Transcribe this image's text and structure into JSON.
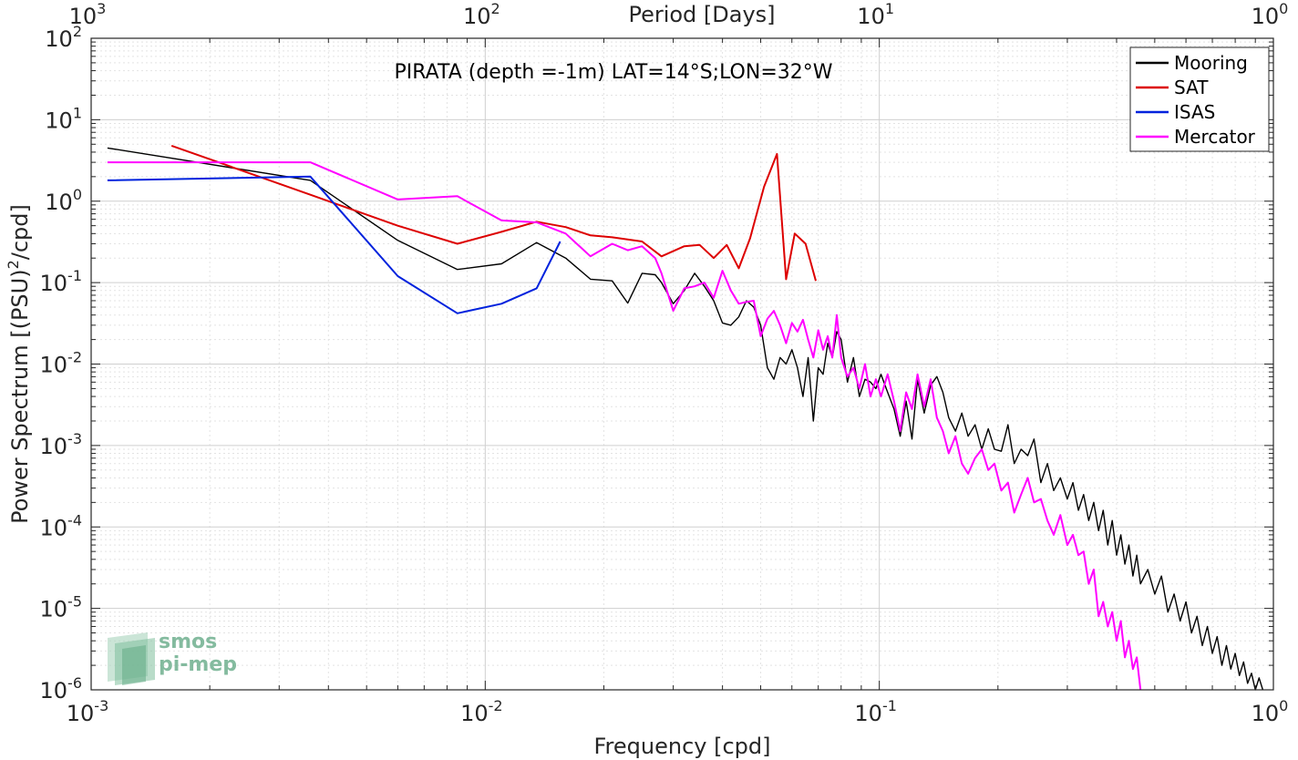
{
  "chart_data": {
    "type": "line",
    "title": "PIRATA (depth =-1m) LAT=14°S;LON=32°W",
    "xlabel": "Frequency [cpd]",
    "ylabel": "Power Spectrum [(PSU)^2/cpd]",
    "ylabel_parts": {
      "pre": "Power Spectrum [(PSU)",
      "sup": "2",
      "post": "/cpd]"
    },
    "top_xlabel": "Period [Days]",
    "xscale": "log",
    "yscale": "log",
    "xlim": [
      0.001,
      1
    ],
    "ylim": [
      1e-06,
      100
    ],
    "grid": true,
    "legend_position": "top-right",
    "x_ticks": [
      {
        "value": 0.001,
        "base": "10",
        "exp": "-3"
      },
      {
        "value": 0.01,
        "base": "10",
        "exp": "-2"
      },
      {
        "value": 0.1,
        "base": "10",
        "exp": "-1"
      },
      {
        "value": 1,
        "base": "10",
        "exp": "0"
      }
    ],
    "y_ticks": [
      {
        "value": 1e-06,
        "base": "10",
        "exp": "-6"
      },
      {
        "value": 1e-05,
        "base": "10",
        "exp": "-5"
      },
      {
        "value": 0.0001,
        "base": "10",
        "exp": "-4"
      },
      {
        "value": 0.001,
        "base": "10",
        "exp": "-3"
      },
      {
        "value": 0.01,
        "base": "10",
        "exp": "-2"
      },
      {
        "value": 0.1,
        "base": "10",
        "exp": "-1"
      },
      {
        "value": 1,
        "base": "10",
        "exp": "0"
      },
      {
        "value": 10,
        "base": "10",
        "exp": "1"
      },
      {
        "value": 100,
        "base": "10",
        "exp": "2"
      }
    ],
    "top_ticks": [
      {
        "period": 1000,
        "base": "10",
        "exp": "3"
      },
      {
        "period": 100,
        "base": "10",
        "exp": "2"
      },
      {
        "period": 10,
        "base": "10",
        "exp": "1"
      },
      {
        "period": 1,
        "base": "10",
        "exp": "0"
      }
    ],
    "series": [
      {
        "name": "Mooring",
        "color": "#000000",
        "x": [
          0.0011,
          0.0036,
          0.006,
          0.0085,
          0.011,
          0.0135,
          0.016,
          0.0185,
          0.021,
          0.023,
          0.025,
          0.027,
          0.028,
          0.03,
          0.032,
          0.034,
          0.036,
          0.038,
          0.04,
          0.042,
          0.044,
          0.046,
          0.048,
          0.05,
          0.052,
          0.054,
          0.056,
          0.058,
          0.06,
          0.062,
          0.064,
          0.066,
          0.068,
          0.07,
          0.072,
          0.074,
          0.076,
          0.078,
          0.08,
          0.083,
          0.086,
          0.089,
          0.092,
          0.095,
          0.098,
          0.101,
          0.105,
          0.109,
          0.113,
          0.117,
          0.121,
          0.125,
          0.13,
          0.135,
          0.14,
          0.145,
          0.15,
          0.156,
          0.162,
          0.168,
          0.175,
          0.182,
          0.189,
          0.196,
          0.204,
          0.212,
          0.22,
          0.229,
          0.238,
          0.247,
          0.257,
          0.267,
          0.277,
          0.288,
          0.3,
          0.31,
          0.32,
          0.33,
          0.34,
          0.35,
          0.36,
          0.37,
          0.38,
          0.39,
          0.4,
          0.41,
          0.42,
          0.43,
          0.44,
          0.45,
          0.46,
          0.48,
          0.5,
          0.52,
          0.54,
          0.56,
          0.58,
          0.6,
          0.62,
          0.64,
          0.66,
          0.68,
          0.7,
          0.72,
          0.74,
          0.76,
          0.78,
          0.8,
          0.82,
          0.84,
          0.86,
          0.88,
          0.9,
          0.92,
          0.94
        ],
        "y": [
          4.5,
          1.8,
          0.33,
          0.145,
          0.17,
          0.31,
          0.2,
          0.11,
          0.105,
          0.056,
          0.13,
          0.125,
          0.1,
          0.055,
          0.08,
          0.13,
          0.09,
          0.06,
          0.032,
          0.03,
          0.038,
          0.06,
          0.05,
          0.03,
          0.009,
          0.0065,
          0.012,
          0.01,
          0.015,
          0.009,
          0.004,
          0.012,
          0.002,
          0.009,
          0.0075,
          0.018,
          0.012,
          0.025,
          0.02,
          0.006,
          0.012,
          0.004,
          0.0065,
          0.006,
          0.005,
          0.0075,
          0.0045,
          0.0028,
          0.0013,
          0.0035,
          0.0012,
          0.0065,
          0.0025,
          0.0055,
          0.007,
          0.0045,
          0.0022,
          0.0015,
          0.0025,
          0.0013,
          0.0018,
          0.0009,
          0.0016,
          0.0009,
          0.00085,
          0.0018,
          0.0006,
          0.0009,
          0.00075,
          0.0012,
          0.00035,
          0.0006,
          0.00028,
          0.0004,
          0.00022,
          0.00035,
          0.00016,
          0.00025,
          0.00012,
          0.0002,
          9e-05,
          0.00016,
          6e-05,
          0.00012,
          4.5e-05,
          8e-05,
          3.5e-05,
          6e-05,
          2.5e-05,
          4.5e-05,
          2e-05,
          3e-05,
          1.5e-05,
          2.5e-05,
          9e-06,
          1.5e-05,
          7e-06,
          1.2e-05,
          5e-06,
          8e-06,
          3.5e-06,
          6e-06,
          2.8e-06,
          4.5e-06,
          2e-06,
          3.5e-06,
          1.8e-06,
          2.8e-06,
          1.5e-06,
          2.2e-06,
          1.2e-06,
          1.6e-06,
          1e-06,
          1.4e-06,
          1e-06
        ]
      },
      {
        "name": "SAT",
        "color": "#dd0000",
        "x": [
          0.0016,
          0.0036,
          0.006,
          0.0085,
          0.011,
          0.0135,
          0.016,
          0.0185,
          0.021,
          0.025,
          0.028,
          0.032,
          0.035,
          0.038,
          0.041,
          0.044,
          0.047,
          0.051,
          0.055,
          0.058,
          0.061,
          0.065,
          0.069
        ],
        "y": [
          4.8,
          1.2,
          0.5,
          0.3,
          0.42,
          0.56,
          0.48,
          0.38,
          0.36,
          0.32,
          0.21,
          0.28,
          0.29,
          0.2,
          0.29,
          0.15,
          0.35,
          1.5,
          3.8,
          0.11,
          0.4,
          0.3,
          0.105
        ]
      },
      {
        "name": "ISAS",
        "color": "#0022dd",
        "x": [
          0.0011,
          0.0036,
          0.006,
          0.0085,
          0.011,
          0.0135,
          0.0155
        ],
        "y": [
          1.8,
          2.0,
          0.12,
          0.042,
          0.055,
          0.085,
          0.32
        ]
      },
      {
        "name": "Mercator",
        "color": "#ff00ff",
        "x": [
          0.0011,
          0.0036,
          0.006,
          0.0085,
          0.011,
          0.0135,
          0.016,
          0.0185,
          0.021,
          0.023,
          0.025,
          0.027,
          0.028,
          0.03,
          0.032,
          0.034,
          0.036,
          0.038,
          0.04,
          0.042,
          0.044,
          0.046,
          0.048,
          0.05,
          0.052,
          0.054,
          0.056,
          0.058,
          0.06,
          0.062,
          0.064,
          0.066,
          0.068,
          0.07,
          0.072,
          0.074,
          0.076,
          0.078,
          0.08,
          0.083,
          0.086,
          0.089,
          0.092,
          0.095,
          0.098,
          0.101,
          0.105,
          0.109,
          0.113,
          0.117,
          0.121,
          0.125,
          0.13,
          0.135,
          0.14,
          0.145,
          0.15,
          0.156,
          0.162,
          0.168,
          0.175,
          0.182,
          0.189,
          0.196,
          0.204,
          0.212,
          0.22,
          0.229,
          0.238,
          0.247,
          0.257,
          0.267,
          0.277,
          0.288,
          0.3,
          0.31,
          0.32,
          0.33,
          0.34,
          0.35,
          0.36,
          0.37,
          0.38,
          0.39,
          0.4,
          0.41,
          0.42,
          0.43,
          0.44,
          0.45,
          0.46
        ],
        "y": [
          3.0,
          3.0,
          1.05,
          1.15,
          0.58,
          0.55,
          0.4,
          0.21,
          0.3,
          0.25,
          0.28,
          0.2,
          0.13,
          0.045,
          0.085,
          0.09,
          0.1,
          0.065,
          0.14,
          0.08,
          0.055,
          0.058,
          0.06,
          0.022,
          0.036,
          0.045,
          0.03,
          0.018,
          0.032,
          0.025,
          0.035,
          0.02,
          0.012,
          0.026,
          0.015,
          0.022,
          0.012,
          0.04,
          0.012,
          0.007,
          0.009,
          0.005,
          0.01,
          0.004,
          0.0065,
          0.004,
          0.0075,
          0.0035,
          0.0015,
          0.0045,
          0.0028,
          0.0075,
          0.003,
          0.0065,
          0.0022,
          0.0015,
          0.0008,
          0.0013,
          0.0006,
          0.00045,
          0.0007,
          0.0009,
          0.0005,
          0.0006,
          0.00028,
          0.00035,
          0.00015,
          0.00025,
          0.0004,
          0.0002,
          0.00022,
          0.00012,
          8e-05,
          0.00014,
          6e-05,
          8e-05,
          4.5e-05,
          5e-05,
          2e-05,
          3e-05,
          8e-06,
          1.2e-05,
          6e-06,
          9e-06,
          4e-06,
          7e-06,
          2.5e-06,
          4e-06,
          1.8e-06,
          2.5e-06,
          1e-06
        ]
      }
    ]
  },
  "logo": {
    "line1": "smos",
    "line2": "pi-mep"
  }
}
